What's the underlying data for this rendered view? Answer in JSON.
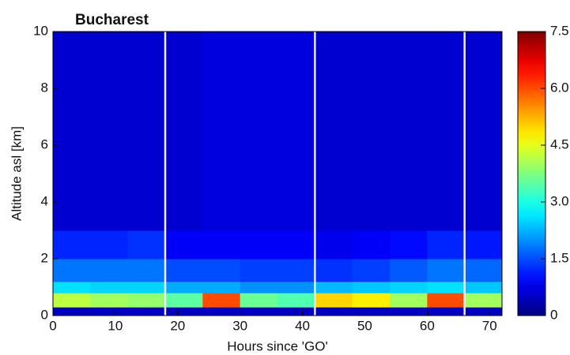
{
  "chart_data": {
    "type": "heatmap",
    "title": "Bucharest",
    "xlabel": "Hours since 'GO'",
    "ylabel": "Altitude asl [km]",
    "xlim": [
      0,
      72
    ],
    "xticks": [
      0,
      10,
      20,
      30,
      40,
      50,
      60,
      70
    ],
    "ylim": [
      0,
      10
    ],
    "yticks": [
      0,
      2,
      4,
      6,
      8,
      10
    ],
    "xbins": [
      0,
      6,
      12,
      18,
      24,
      30,
      36,
      42,
      48,
      54,
      60,
      66,
      72
    ],
    "ybins": [
      0,
      0.3,
      0.8,
      1.2,
      2,
      3,
      10
    ],
    "z": [
      [
        0.5,
        0.5,
        0.5,
        0.5,
        0.5,
        0.5,
        0.5,
        0.5,
        0.5,
        0.5,
        0.5,
        0.5
      ],
      [
        4.2,
        4.0,
        3.9,
        3.5,
        6.0,
        3.6,
        3.4,
        5.0,
        4.8,
        4.0,
        6.0,
        4.0
      ],
      [
        2.6,
        2.5,
        2.5,
        2.2,
        2.2,
        2.0,
        2.0,
        2.3,
        2.4,
        2.5,
        2.6,
        2.4
      ],
      [
        1.8,
        1.8,
        1.8,
        1.5,
        1.5,
        1.4,
        1.4,
        1.3,
        1.4,
        1.6,
        1.8,
        1.7
      ],
      [
        1.2,
        1.2,
        1.3,
        0.9,
        0.9,
        0.9,
        0.9,
        0.8,
        0.9,
        1.0,
        1.2,
        1.1
      ],
      [
        0.6,
        0.6,
        0.6,
        0.6,
        0.7,
        0.7,
        0.7,
        0.6,
        0.6,
        0.6,
        0.6,
        0.6
      ]
    ],
    "vlines": [
      18,
      42,
      66
    ],
    "colormap": "jet",
    "clim": [
      0,
      7.5
    ],
    "cticks": [
      0,
      1.5,
      {
        "value": 3,
        "label": "3.0"
      },
      4.5,
      {
        "value": 6,
        "label": "6.0"
      },
      7.5
    ]
  }
}
